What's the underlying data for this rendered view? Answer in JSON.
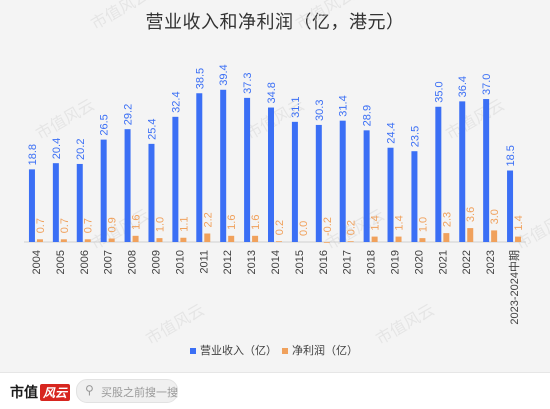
{
  "chart_data": {
    "type": "bar",
    "title": "营业收入和净利润（亿，港元）",
    "categories": [
      "2004",
      "2005",
      "2006",
      "2007",
      "2008",
      "2009",
      "2010",
      "2011",
      "2012",
      "2013",
      "2014",
      "2015",
      "2016",
      "2017",
      "2018",
      "2019",
      "2020",
      "2021",
      "2022",
      "2023",
      "2023-2024中期"
    ],
    "series": [
      {
        "name": "营业收入（亿）",
        "color": "#3b6ff5",
        "values": [
          18.8,
          20.4,
          20.2,
          26.5,
          29.2,
          25.4,
          32.4,
          38.5,
          39.4,
          37.3,
          34.8,
          31.1,
          30.3,
          31.4,
          28.9,
          24.4,
          23.5,
          35.0,
          36.4,
          37.0,
          18.5
        ],
        "labels": [
          "18.8",
          "20.4",
          "20.2",
          "26.5",
          "29.2",
          "25.4",
          "32.4",
          "38.5",
          "39.4",
          "37.3",
          "34.8",
          "31.1",
          "30.3",
          "31.4",
          "28.9",
          "24.4",
          "23.5",
          "35.0",
          "36.4",
          "37.0",
          "18.5"
        ]
      },
      {
        "name": "净利润（亿）",
        "color": "#f0a15c",
        "values": [
          0.7,
          0.7,
          0.7,
          0.9,
          1.6,
          1.0,
          1.1,
          2.2,
          1.6,
          1.6,
          0.2,
          0.0,
          -0.2,
          0.2,
          1.4,
          1.4,
          1.0,
          2.3,
          3.6,
          3.0,
          1.4
        ],
        "labels": [
          "0.7",
          "0.7",
          "0.7",
          "0.9",
          "1.6",
          "1.0",
          "1.1",
          "2.2",
          "1.6",
          "1.6",
          "0.2",
          "0.0",
          "-0.2",
          "0.2",
          "1.4",
          "1.4",
          "1.0",
          "2.3",
          "3.6",
          "3.0",
          "1.4"
        ]
      }
    ],
    "ylim": [
      -1,
      44
    ],
    "grid": false,
    "legend": "bottom"
  },
  "watermark": "市值风云",
  "footer": {
    "brand": "市值",
    "brand_accent": "风云",
    "search_placeholder": "买股之前搜一搜",
    "search_icon": "search-icon"
  }
}
